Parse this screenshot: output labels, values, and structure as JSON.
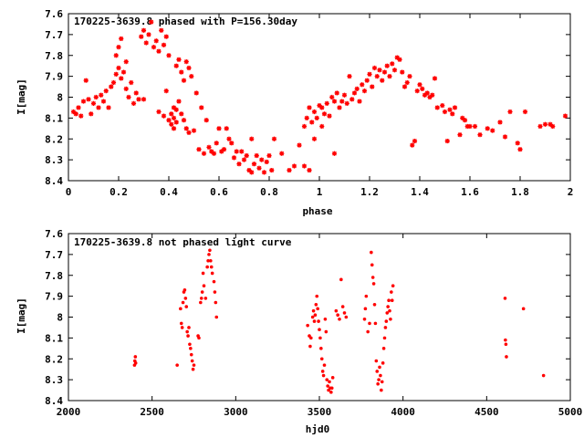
{
  "chart_data": [
    {
      "type": "scatter",
      "title": "170225-3639.8 phased with P=156.30day",
      "xlabel": "phase",
      "ylabel": "I[mag]",
      "xlim": [
        0,
        2
      ],
      "ylim": [
        8.4,
        7.6
      ],
      "xticks": [
        "0",
        "0.2",
        "0.4",
        "0.6",
        "0.8",
        "1",
        "1.2",
        "1.4",
        "1.6",
        "1.8",
        "2"
      ],
      "xtick_values": [
        0,
        0.2,
        0.4,
        0.6,
        0.8,
        1,
        1.2,
        1.4,
        1.6,
        1.8,
        2
      ],
      "yticks": [
        "7.6",
        "7.7",
        "7.8",
        "7.9",
        "8",
        "8.1",
        "8.2",
        "8.3",
        "8.4"
      ],
      "ytick_values": [
        7.6,
        7.7,
        7.8,
        7.9,
        8.0,
        8.1,
        8.2,
        8.3,
        8.4
      ],
      "marker": "star",
      "color": "#ff0000",
      "points": [
        [
          0.02,
          8.07
        ],
        [
          0.03,
          8.08
        ],
        [
          0.04,
          8.05
        ],
        [
          0.05,
          8.09
        ],
        [
          0.06,
          8.02
        ],
        [
          0.07,
          7.92
        ],
        [
          0.08,
          8.01
        ],
        [
          0.09,
          8.08
        ],
        [
          0.1,
          8.03
        ],
        [
          0.11,
          8.0
        ],
        [
          0.12,
          8.05
        ],
        [
          0.13,
          7.99
        ],
        [
          0.14,
          8.02
        ],
        [
          0.15,
          7.97
        ],
        [
          0.16,
          8.05
        ],
        [
          0.17,
          7.95
        ],
        [
          0.18,
          7.93
        ],
        [
          0.19,
          7.89
        ],
        [
          0.19,
          7.8
        ],
        [
          0.2,
          7.86
        ],
        [
          0.2,
          7.76
        ],
        [
          0.21,
          7.91
        ],
        [
          0.21,
          7.72
        ],
        [
          0.22,
          7.88
        ],
        [
          0.23,
          7.83
        ],
        [
          0.23,
          7.96
        ],
        [
          0.24,
          8.0
        ],
        [
          0.25,
          7.93
        ],
        [
          0.26,
          8.03
        ],
        [
          0.27,
          7.98
        ],
        [
          0.28,
          8.01
        ],
        [
          0.29,
          7.71
        ],
        [
          0.3,
          8.01
        ],
        [
          0.3,
          7.68
        ],
        [
          0.31,
          7.74
        ],
        [
          0.32,
          7.7
        ],
        [
          0.33,
          7.64
        ],
        [
          0.34,
          7.76
        ],
        [
          0.35,
          7.73
        ],
        [
          0.36,
          7.78
        ],
        [
          0.36,
          8.07
        ],
        [
          0.37,
          7.68
        ],
        [
          0.38,
          7.75
        ],
        [
          0.38,
          8.09
        ],
        [
          0.39,
          7.71
        ],
        [
          0.39,
          7.97
        ],
        [
          0.4,
          7.8
        ],
        [
          0.4,
          8.11
        ],
        [
          0.41,
          8.08
        ],
        [
          0.41,
          8.13
        ],
        [
          0.42,
          8.05
        ],
        [
          0.42,
          8.15
        ],
        [
          0.42,
          8.1
        ],
        [
          0.43,
          8.06
        ],
        [
          0.43,
          8.12
        ],
        [
          0.43,
          7.85
        ],
        [
          0.44,
          8.02
        ],
        [
          0.44,
          7.82
        ],
        [
          0.45,
          8.08
        ],
        [
          0.45,
          7.88
        ],
        [
          0.46,
          8.11
        ],
        [
          0.46,
          7.92
        ],
        [
          0.47,
          7.83
        ],
        [
          0.47,
          8.15
        ],
        [
          0.48,
          7.86
        ],
        [
          0.48,
          8.17
        ],
        [
          0.49,
          7.9
        ],
        [
          0.5,
          8.16
        ],
        [
          0.51,
          7.98
        ],
        [
          0.52,
          8.25
        ],
        [
          0.53,
          8.05
        ],
        [
          0.54,
          8.27
        ],
        [
          0.55,
          8.11
        ],
        [
          0.56,
          8.24
        ],
        [
          0.57,
          8.26
        ],
        [
          0.58,
          8.27
        ],
        [
          0.59,
          8.22
        ],
        [
          0.6,
          8.15
        ],
        [
          0.61,
          8.26
        ],
        [
          0.62,
          8.25
        ],
        [
          0.63,
          8.15
        ],
        [
          0.64,
          8.2
        ],
        [
          0.65,
          8.22
        ],
        [
          0.66,
          8.29
        ],
        [
          0.67,
          8.26
        ],
        [
          0.68,
          8.32
        ],
        [
          0.69,
          8.26
        ],
        [
          0.7,
          8.3
        ],
        [
          0.71,
          8.28
        ],
        [
          0.72,
          8.35
        ],
        [
          0.73,
          8.2
        ],
        [
          0.73,
          8.36
        ],
        [
          0.74,
          8.32
        ],
        [
          0.75,
          8.28
        ],
        [
          0.76,
          8.34
        ],
        [
          0.77,
          8.3
        ],
        [
          0.78,
          8.36
        ],
        [
          0.79,
          8.31
        ],
        [
          0.8,
          8.28
        ],
        [
          0.81,
          8.35
        ],
        [
          0.82,
          8.2
        ],
        [
          0.85,
          8.27
        ],
        [
          0.88,
          8.35
        ],
        [
          0.9,
          8.33
        ],
        [
          0.92,
          8.23
        ],
        [
          0.94,
          8.33
        ],
        [
          0.94,
          8.14
        ],
        [
          0.95,
          8.1
        ],
        [
          0.96,
          8.35
        ],
        [
          0.96,
          8.05
        ],
        [
          0.97,
          8.12
        ],
        [
          0.98,
          8.07
        ],
        [
          0.98,
          8.2
        ],
        [
          0.99,
          8.1
        ],
        [
          1.0,
          8.04
        ],
        [
          1.01,
          8.14
        ],
        [
          1.01,
          8.05
        ],
        [
          1.02,
          8.08
        ],
        [
          1.03,
          8.03
        ],
        [
          1.04,
          8.09
        ],
        [
          1.05,
          8.0
        ],
        [
          1.06,
          8.02
        ],
        [
          1.06,
          8.27
        ],
        [
          1.07,
          7.98
        ],
        [
          1.08,
          8.05
        ],
        [
          1.09,
          8.02
        ],
        [
          1.1,
          7.99
        ],
        [
          1.11,
          8.03
        ],
        [
          1.12,
          7.9
        ],
        [
          1.13,
          8.01
        ],
        [
          1.14,
          7.98
        ],
        [
          1.15,
          7.96
        ],
        [
          1.16,
          8.02
        ],
        [
          1.17,
          7.94
        ],
        [
          1.18,
          7.97
        ],
        [
          1.19,
          7.92
        ],
        [
          1.2,
          7.89
        ],
        [
          1.21,
          7.95
        ],
        [
          1.22,
          7.86
        ],
        [
          1.23,
          7.9
        ],
        [
          1.24,
          7.87
        ],
        [
          1.25,
          7.92
        ],
        [
          1.26,
          7.88
        ],
        [
          1.27,
          7.85
        ],
        [
          1.28,
          7.9
        ],
        [
          1.29,
          7.84
        ],
        [
          1.3,
          7.87
        ],
        [
          1.31,
          7.81
        ],
        [
          1.32,
          7.82
        ],
        [
          1.33,
          7.88
        ],
        [
          1.34,
          7.95
        ],
        [
          1.35,
          7.93
        ],
        [
          1.36,
          7.9
        ],
        [
          1.37,
          8.23
        ],
        [
          1.38,
          8.21
        ],
        [
          1.39,
          7.97
        ],
        [
          1.4,
          7.94
        ],
        [
          1.41,
          7.96
        ],
        [
          1.42,
          7.99
        ],
        [
          1.43,
          7.98
        ],
        [
          1.44,
          8.0
        ],
        [
          1.45,
          7.99
        ],
        [
          1.46,
          7.91
        ],
        [
          1.47,
          8.05
        ],
        [
          1.49,
          8.04
        ],
        [
          1.5,
          8.07
        ],
        [
          1.51,
          8.21
        ],
        [
          1.52,
          8.06
        ],
        [
          1.53,
          8.08
        ],
        [
          1.54,
          8.05
        ],
        [
          1.56,
          8.18
        ],
        [
          1.57,
          8.1
        ],
        [
          1.58,
          8.11
        ],
        [
          1.59,
          8.14
        ],
        [
          1.6,
          8.14
        ],
        [
          1.62,
          8.14
        ],
        [
          1.64,
          8.18
        ],
        [
          1.67,
          8.15
        ],
        [
          1.69,
          8.16
        ],
        [
          1.72,
          8.12
        ],
        [
          1.74,
          8.19
        ],
        [
          1.76,
          8.07
        ],
        [
          1.79,
          8.22
        ],
        [
          1.8,
          8.25
        ],
        [
          1.82,
          8.07
        ],
        [
          1.88,
          8.14
        ],
        [
          1.9,
          8.13
        ],
        [
          1.92,
          8.13
        ],
        [
          1.93,
          8.14
        ],
        [
          1.98,
          8.09
        ]
      ]
    },
    {
      "type": "scatter",
      "title": "170225-3639.8 not phased light curve",
      "xlabel": "hjd0",
      "ylabel": "I[mag]",
      "xlim": [
        2000,
        5000
      ],
      "ylim": [
        8.4,
        7.6
      ],
      "xticks": [
        "2000",
        "2500",
        "3000",
        "3500",
        "4000",
        "4500",
        "5000"
      ],
      "xtick_values": [
        2000,
        2500,
        3000,
        3500,
        4000,
        4500,
        5000
      ],
      "yticks": [
        "7.6",
        "7.7",
        "7.8",
        "7.9",
        "8",
        "8.1",
        "8.2",
        "8.3",
        "8.4"
      ],
      "ytick_values": [
        7.6,
        7.7,
        7.8,
        7.9,
        8.0,
        8.1,
        8.2,
        8.3,
        8.4
      ],
      "marker": "dot",
      "color": "#ff0000",
      "points": [
        [
          2395,
          8.23
        ],
        [
          2397,
          8.21
        ],
        [
          2400,
          8.19
        ],
        [
          2402,
          8.22
        ],
        [
          2650,
          8.23
        ],
        [
          2670,
          7.96
        ],
        [
          2675,
          8.03
        ],
        [
          2680,
          8.05
        ],
        [
          2685,
          7.93
        ],
        [
          2690,
          7.88
        ],
        [
          2695,
          7.87
        ],
        [
          2700,
          7.91
        ],
        [
          2705,
          7.95
        ],
        [
          2710,
          8.07
        ],
        [
          2715,
          8.09
        ],
        [
          2720,
          8.05
        ],
        [
          2725,
          8.13
        ],
        [
          2730,
          8.15
        ],
        [
          2735,
          8.18
        ],
        [
          2740,
          8.21
        ],
        [
          2745,
          8.25
        ],
        [
          2750,
          8.23
        ],
        [
          2775,
          8.09
        ],
        [
          2780,
          8.1
        ],
        [
          2790,
          7.93
        ],
        [
          2795,
          7.91
        ],
        [
          2800,
          7.88
        ],
        [
          2805,
          7.79
        ],
        [
          2810,
          7.85
        ],
        [
          2820,
          7.91
        ],
        [
          2830,
          7.76
        ],
        [
          2835,
          7.73
        ],
        [
          2840,
          7.7
        ],
        [
          2845,
          7.68
        ],
        [
          2850,
          7.73
        ],
        [
          2855,
          7.76
        ],
        [
          2860,
          7.79
        ],
        [
          2870,
          7.83
        ],
        [
          2875,
          7.88
        ],
        [
          2880,
          7.93
        ],
        [
          2885,
          8.0
        ],
        [
          3430,
          8.04
        ],
        [
          3440,
          8.09
        ],
        [
          3445,
          8.14
        ],
        [
          3450,
          8.1
        ],
        [
          3460,
          8.0
        ],
        [
          3465,
          7.97
        ],
        [
          3470,
          8.02
        ],
        [
          3475,
          7.99
        ],
        [
          3480,
          7.94
        ],
        [
          3485,
          7.9
        ],
        [
          3490,
          7.96
        ],
        [
          3495,
          8.02
        ],
        [
          3500,
          8.06
        ],
        [
          3505,
          8.1
        ],
        [
          3510,
          8.15
        ],
        [
          3515,
          8.2
        ],
        [
          3520,
          8.26
        ],
        [
          3525,
          8.28
        ],
        [
          3530,
          8.23
        ],
        [
          3535,
          8.01
        ],
        [
          3540,
          8.07
        ],
        [
          3545,
          8.3
        ],
        [
          3550,
          8.33
        ],
        [
          3555,
          8.35
        ],
        [
          3560,
          8.31
        ],
        [
          3565,
          8.34
        ],
        [
          3570,
          8.36
        ],
        [
          3575,
          8.34
        ],
        [
          3580,
          8.29
        ],
        [
          3600,
          7.97
        ],
        [
          3610,
          7.99
        ],
        [
          3620,
          8.01
        ],
        [
          3630,
          7.82
        ],
        [
          3640,
          7.95
        ],
        [
          3650,
          7.98
        ],
        [
          3660,
          8.0
        ],
        [
          3770,
          8.01
        ],
        [
          3775,
          7.96
        ],
        [
          3780,
          7.9
        ],
        [
          3790,
          8.07
        ],
        [
          3800,
          8.03
        ],
        [
          3810,
          7.69
        ],
        [
          3815,
          7.75
        ],
        [
          3820,
          7.81
        ],
        [
          3825,
          7.84
        ],
        [
          3830,
          7.94
        ],
        [
          3835,
          8.03
        ],
        [
          3840,
          8.21
        ],
        [
          3845,
          8.26
        ],
        [
          3850,
          8.32
        ],
        [
          3855,
          8.3
        ],
        [
          3860,
          8.24
        ],
        [
          3865,
          8.28
        ],
        [
          3870,
          8.35
        ],
        [
          3875,
          8.31
        ],
        [
          3880,
          8.22
        ],
        [
          3885,
          8.15
        ],
        [
          3890,
          8.1
        ],
        [
          3895,
          8.05
        ],
        [
          3900,
          8.02
        ],
        [
          3905,
          7.98
        ],
        [
          3910,
          7.95
        ],
        [
          3915,
          7.92
        ],
        [
          3920,
          7.97
        ],
        [
          3925,
          8.01
        ],
        [
          3930,
          7.88
        ],
        [
          3935,
          7.92
        ],
        [
          3940,
          7.85
        ],
        [
          4610,
          7.91
        ],
        [
          4612,
          8.11
        ],
        [
          4615,
          8.13
        ],
        [
          4618,
          8.19
        ],
        [
          4720,
          7.96
        ],
        [
          4840,
          8.28
        ]
      ]
    }
  ]
}
